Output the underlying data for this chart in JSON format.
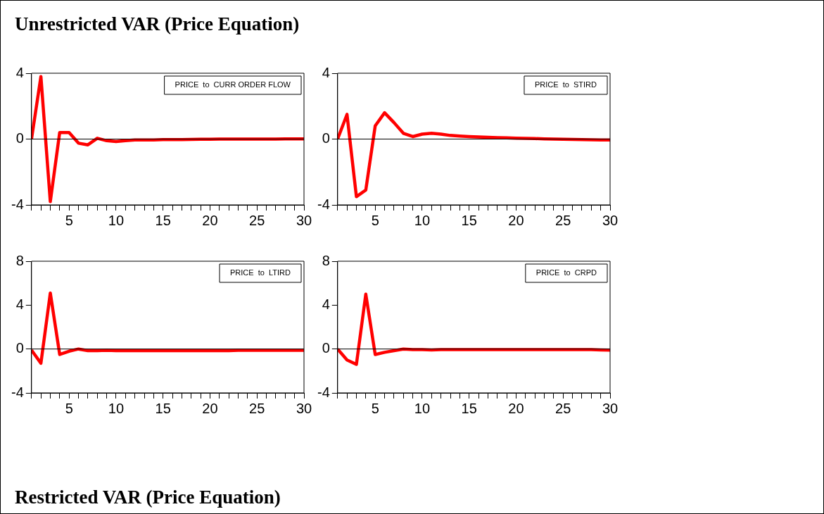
{
  "chart_data": [
    {
      "type": "other",
      "title": "Unrestricted VAR (Price Equation)"
    },
    {
      "type": "line",
      "title": "PRICE  to  CURR ORDER FLOW",
      "color": "#ff0000",
      "x": [
        1,
        2,
        3,
        4,
        5,
        6,
        7,
        8,
        9,
        10,
        11,
        12,
        13,
        14,
        15,
        16,
        17,
        18,
        19,
        20,
        21,
        22,
        23,
        24,
        25,
        26,
        27,
        28,
        29,
        30
      ],
      "values": [
        0,
        3.8,
        -3.8,
        0.4,
        0.4,
        -0.25,
        -0.35,
        0.05,
        -0.1,
        -0.15,
        -0.1,
        -0.05,
        -0.05,
        -0.05,
        -0.03,
        -0.03,
        -0.03,
        -0.02,
        -0.01,
        -0.01,
        0,
        0,
        0,
        0,
        0,
        0,
        0,
        0.01,
        0.01,
        0.01
      ],
      "xlim": [
        1,
        30
      ],
      "xticks": [
        {
          "value": 1,
          "label": null
        },
        {
          "value": 2,
          "label": null
        },
        {
          "value": 3,
          "label": null
        },
        {
          "value": 4,
          "label": null
        },
        5,
        {
          "value": 6,
          "label": null
        },
        {
          "value": 7,
          "label": null
        },
        {
          "value": 8,
          "label": null
        },
        {
          "value": 9,
          "label": null
        },
        10,
        {
          "value": 11,
          "label": null
        },
        {
          "value": 12,
          "label": null
        },
        {
          "value": 13,
          "label": null
        },
        {
          "value": 14,
          "label": null
        },
        15,
        {
          "value": 16,
          "label": null
        },
        {
          "value": 17,
          "label": null
        },
        {
          "value": 18,
          "label": null
        },
        {
          "value": 19,
          "label": null
        },
        20,
        {
          "value": 21,
          "label": null
        },
        {
          "value": 22,
          "label": null
        },
        {
          "value": 23,
          "label": null
        },
        {
          "value": 24,
          "label": null
        },
        25,
        {
          "value": 26,
          "label": null
        },
        {
          "value": 27,
          "label": null
        },
        {
          "value": 28,
          "label": null
        },
        {
          "value": 29,
          "label": null
        },
        30
      ],
      "ylim": [
        -4,
        4
      ],
      "yticks": [
        -4,
        0,
        4
      ],
      "ref_lines": [
        {
          "axis": "y",
          "value": 0,
          "color": "#000000"
        }
      ]
    },
    {
      "type": "line",
      "title": "PRICE  to  STIRD",
      "color": "#ff0000",
      "x": [
        1,
        2,
        3,
        4,
        5,
        6,
        7,
        8,
        9,
        10,
        11,
        12,
        13,
        14,
        15,
        16,
        17,
        18,
        19,
        20,
        21,
        22,
        23,
        24,
        25,
        26,
        27,
        28,
        29,
        30
      ],
      "values": [
        0,
        1.5,
        -3.5,
        -3.1,
        0.8,
        1.6,
        1.0,
        0.35,
        0.15,
        0.3,
        0.35,
        0.3,
        0.22,
        0.18,
        0.15,
        0.13,
        0.11,
        0.09,
        0.07,
        0.05,
        0.04,
        0.03,
        0.01,
        0,
        -0.01,
        -0.02,
        -0.03,
        -0.04,
        -0.05,
        -0.05
      ],
      "xlim": [
        1,
        30
      ],
      "xticks": [
        {
          "value": 1,
          "label": null
        },
        {
          "value": 2,
          "label": null
        },
        {
          "value": 3,
          "label": null
        },
        {
          "value": 4,
          "label": null
        },
        5,
        {
          "value": 6,
          "label": null
        },
        {
          "value": 7,
          "label": null
        },
        {
          "value": 8,
          "label": null
        },
        {
          "value": 9,
          "label": null
        },
        10,
        {
          "value": 11,
          "label": null
        },
        {
          "value": 12,
          "label": null
        },
        {
          "value": 13,
          "label": null
        },
        {
          "value": 14,
          "label": null
        },
        15,
        {
          "value": 16,
          "label": null
        },
        {
          "value": 17,
          "label": null
        },
        {
          "value": 18,
          "label": null
        },
        {
          "value": 19,
          "label": null
        },
        20,
        {
          "value": 21,
          "label": null
        },
        {
          "value": 22,
          "label": null
        },
        {
          "value": 23,
          "label": null
        },
        {
          "value": 24,
          "label": null
        },
        25,
        {
          "value": 26,
          "label": null
        },
        {
          "value": 27,
          "label": null
        },
        {
          "value": 28,
          "label": null
        },
        {
          "value": 29,
          "label": null
        },
        30
      ],
      "ylim": [
        -4,
        4
      ],
      "yticks": [
        -4,
        0,
        4
      ],
      "ref_lines": [
        {
          "axis": "y",
          "value": 0,
          "color": "#000000"
        }
      ]
    },
    {
      "type": "line",
      "title": "PRICE  to  LTIRD",
      "color": "#ff0000",
      "x": [
        1,
        2,
        3,
        4,
        5,
        6,
        7,
        8,
        9,
        10,
        11,
        12,
        13,
        14,
        15,
        16,
        17,
        18,
        19,
        20,
        21,
        22,
        23,
        24,
        25,
        26,
        27,
        28,
        29,
        30
      ],
      "values": [
        -0.1,
        -1.3,
        5.1,
        -0.5,
        -0.2,
        0,
        -0.15,
        -0.15,
        -0.12,
        -0.15,
        -0.15,
        -0.15,
        -0.15,
        -0.15,
        -0.15,
        -0.15,
        -0.15,
        -0.15,
        -0.15,
        -0.15,
        -0.15,
        -0.15,
        -0.12,
        -0.12,
        -0.12,
        -0.12,
        -0.12,
        -0.12,
        -0.12,
        -0.12
      ],
      "xlim": [
        1,
        30
      ],
      "xticks": [
        {
          "value": 1,
          "label": null
        },
        {
          "value": 2,
          "label": null
        },
        {
          "value": 3,
          "label": null
        },
        {
          "value": 4,
          "label": null
        },
        5,
        {
          "value": 6,
          "label": null
        },
        {
          "value": 7,
          "label": null
        },
        {
          "value": 8,
          "label": null
        },
        {
          "value": 9,
          "label": null
        },
        10,
        {
          "value": 11,
          "label": null
        },
        {
          "value": 12,
          "label": null
        },
        {
          "value": 13,
          "label": null
        },
        {
          "value": 14,
          "label": null
        },
        15,
        {
          "value": 16,
          "label": null
        },
        {
          "value": 17,
          "label": null
        },
        {
          "value": 18,
          "label": null
        },
        {
          "value": 19,
          "label": null
        },
        20,
        {
          "value": 21,
          "label": null
        },
        {
          "value": 22,
          "label": null
        },
        {
          "value": 23,
          "label": null
        },
        {
          "value": 24,
          "label": null
        },
        25,
        {
          "value": 26,
          "label": null
        },
        {
          "value": 27,
          "label": null
        },
        {
          "value": 28,
          "label": null
        },
        {
          "value": 29,
          "label": null
        },
        30
      ],
      "ylim": [
        -4,
        8
      ],
      "yticks": [
        -4,
        0,
        4,
        8
      ],
      "ref_lines": [
        {
          "axis": "y",
          "value": 0,
          "color": "#000000"
        }
      ]
    },
    {
      "type": "line",
      "title": "PRICE  to  CRPD",
      "color": "#ff0000",
      "x": [
        1,
        2,
        3,
        4,
        5,
        6,
        7,
        8,
        9,
        10,
        11,
        12,
        13,
        14,
        15,
        16,
        17,
        18,
        19,
        20,
        21,
        22,
        23,
        24,
        25,
        26,
        27,
        28,
        29,
        30
      ],
      "values": [
        0,
        -1.0,
        -1.4,
        5.0,
        -0.5,
        -0.3,
        -0.15,
        0,
        -0.05,
        -0.05,
        -0.08,
        -0.05,
        -0.05,
        -0.05,
        -0.05,
        -0.05,
        -0.05,
        -0.05,
        -0.05,
        -0.05,
        -0.05,
        -0.05,
        -0.05,
        -0.05,
        -0.05,
        -0.05,
        -0.05,
        -0.05,
        -0.08,
        -0.1
      ],
      "xlim": [
        1,
        30
      ],
      "xticks": [
        {
          "value": 1,
          "label": null
        },
        {
          "value": 2,
          "label": null
        },
        {
          "value": 3,
          "label": null
        },
        {
          "value": 4,
          "label": null
        },
        5,
        {
          "value": 6,
          "label": null
        },
        {
          "value": 7,
          "label": null
        },
        {
          "value": 8,
          "label": null
        },
        {
          "value": 9,
          "label": null
        },
        10,
        {
          "value": 11,
          "label": null
        },
        {
          "value": 12,
          "label": null
        },
        {
          "value": 13,
          "label": null
        },
        {
          "value": 14,
          "label": null
        },
        15,
        {
          "value": 16,
          "label": null
        },
        {
          "value": 17,
          "label": null
        },
        {
          "value": 18,
          "label": null
        },
        {
          "value": 19,
          "label": null
        },
        20,
        {
          "value": 21,
          "label": null
        },
        {
          "value": 22,
          "label": null
        },
        {
          "value": 23,
          "label": null
        },
        {
          "value": 24,
          "label": null
        },
        25,
        {
          "value": 26,
          "label": null
        },
        {
          "value": 27,
          "label": null
        },
        {
          "value": 28,
          "label": null
        },
        {
          "value": 29,
          "label": null
        },
        30
      ],
      "ylim": [
        -4,
        8
      ],
      "yticks": [
        -4,
        0,
        4,
        8
      ],
      "ref_lines": [
        {
          "axis": "y",
          "value": 0,
          "color": "#000000"
        }
      ]
    },
    {
      "type": "other",
      "title": "Restricted VAR (Price Equation)"
    }
  ]
}
